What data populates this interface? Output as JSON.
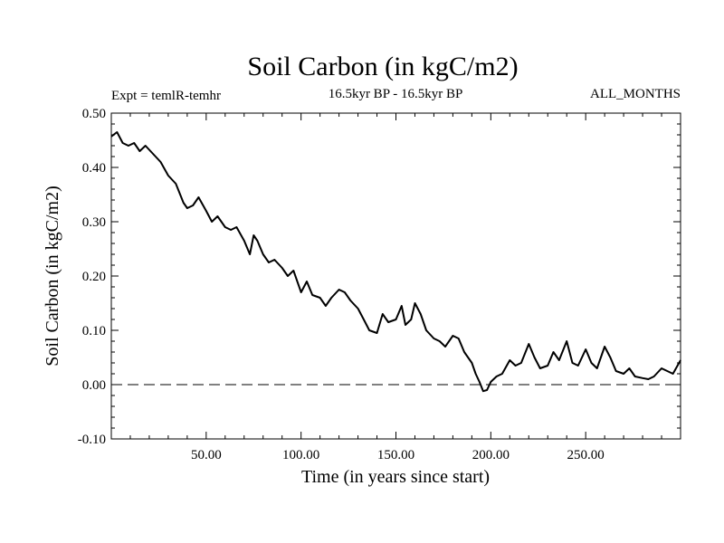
{
  "chart_data": {
    "type": "line",
    "title": "Soil Carbon (in kgC/m2)",
    "subtitle": "16.5kyr BP - 16.5kyr BP",
    "expt_label": "Expt = temlR-temhr",
    "months_label": "ALL_MONTHS",
    "xlabel": "Time (in years since start)",
    "ylabel": "Soil Carbon (in kgC/m2)",
    "xlim": [
      0,
      300
    ],
    "ylim": [
      -0.1,
      0.5
    ],
    "x_ticks": [
      50,
      100,
      150,
      200,
      250
    ],
    "x_tick_labels": [
      "50.00",
      "100.00",
      "150.00",
      "200.00",
      "250.00"
    ],
    "y_ticks": [
      -0.1,
      0.0,
      0.1,
      0.2,
      0.3,
      0.4,
      0.5
    ],
    "y_tick_labels": [
      "-0.10",
      "0.00",
      "0.10",
      "0.20",
      "0.30",
      "0.40",
      "0.50"
    ],
    "reference_line": {
      "y": 0.0,
      "style": "dashed"
    },
    "series": [
      {
        "name": "Soil Carbon",
        "x": [
          0,
          3,
          6,
          9,
          12,
          15,
          18,
          22,
          26,
          30,
          34,
          38,
          40,
          43,
          46,
          50,
          53,
          56,
          60,
          63,
          66,
          70,
          73,
          75,
          77,
          80,
          83,
          86,
          90,
          93,
          96,
          100,
          103,
          106,
          110,
          113,
          116,
          120,
          123,
          126,
          130,
          133,
          136,
          140,
          143,
          146,
          150,
          153,
          155,
          158,
          160,
          163,
          166,
          170,
          173,
          176,
          180,
          183,
          186,
          190,
          192,
          194,
          196,
          198,
          200,
          203,
          206,
          210,
          213,
          216,
          220,
          223,
          226,
          230,
          233,
          236,
          240,
          243,
          246,
          250,
          253,
          256,
          260,
          263,
          266,
          270,
          273,
          276,
          280,
          283,
          286,
          290,
          293,
          296,
          300
        ],
        "values": [
          0.457,
          0.465,
          0.445,
          0.44,
          0.445,
          0.43,
          0.44,
          0.425,
          0.41,
          0.385,
          0.37,
          0.335,
          0.325,
          0.33,
          0.345,
          0.32,
          0.3,
          0.31,
          0.29,
          0.285,
          0.29,
          0.265,
          0.24,
          0.275,
          0.265,
          0.24,
          0.225,
          0.23,
          0.215,
          0.2,
          0.21,
          0.17,
          0.19,
          0.165,
          0.16,
          0.145,
          0.16,
          0.175,
          0.17,
          0.155,
          0.14,
          0.12,
          0.1,
          0.095,
          0.13,
          0.115,
          0.12,
          0.145,
          0.11,
          0.12,
          0.15,
          0.13,
          0.1,
          0.085,
          0.08,
          0.07,
          0.09,
          0.085,
          0.06,
          0.04,
          0.02,
          0.005,
          -0.012,
          -0.01,
          0.005,
          0.015,
          0.02,
          0.045,
          0.035,
          0.04,
          0.075,
          0.05,
          0.03,
          0.035,
          0.06,
          0.045,
          0.08,
          0.04,
          0.035,
          0.065,
          0.04,
          0.03,
          0.07,
          0.05,
          0.025,
          0.02,
          0.03,
          0.015,
          0.012,
          0.01,
          0.015,
          0.03,
          0.025,
          0.02,
          0.045
        ]
      }
    ]
  }
}
